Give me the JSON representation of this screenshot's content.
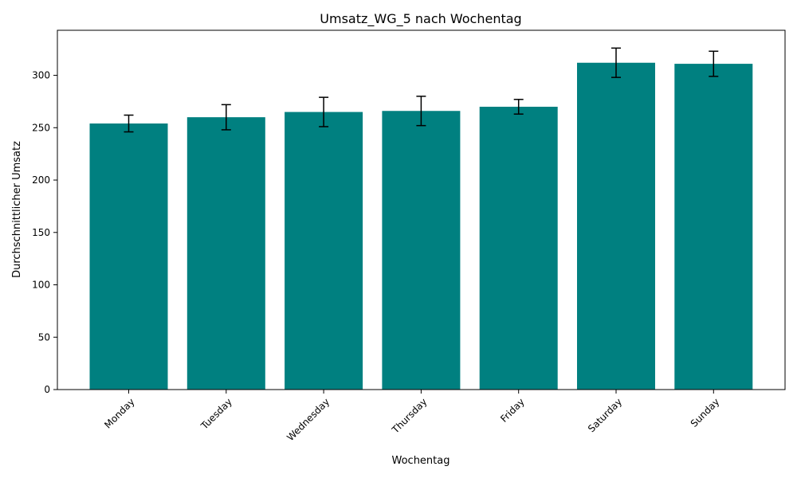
{
  "chart_data": {
    "type": "bar",
    "title": "Umsatz_WG_5 nach Wochentag",
    "xlabel": "Wochentag",
    "ylabel": "Durchschnittlicher Umsatz",
    "categories": [
      "Monday",
      "Tuesday",
      "Wednesday",
      "Thursday",
      "Friday",
      "Saturday",
      "Sunday"
    ],
    "values": [
      254,
      260,
      265,
      266,
      270,
      312,
      311
    ],
    "error": [
      8,
      12,
      14,
      14,
      7,
      14,
      12
    ],
    "ylim": [
      0,
      343
    ],
    "yticks": [
      "0",
      "50",
      "100",
      "150",
      "200",
      "250",
      "300"
    ],
    "bar_color": "#008080",
    "errorbar_color": "#000000",
    "grid": false
  }
}
